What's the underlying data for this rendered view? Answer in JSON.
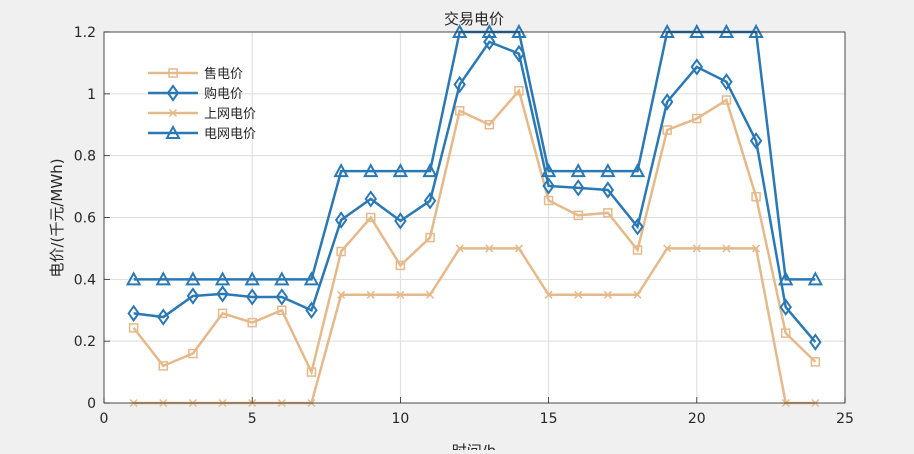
{
  "chart_data": {
    "type": "line",
    "title": "交易电价",
    "xlabel": "时间/h",
    "ylabel": "电价/(千元/MWh)",
    "xlim": [
      0,
      25
    ],
    "ylim": [
      0,
      1.2
    ],
    "xticks": [
      0,
      5,
      10,
      15,
      20,
      25
    ],
    "yticks": [
      0,
      0.2,
      0.4,
      0.6,
      0.8,
      1,
      1.2
    ],
    "grid": true,
    "legend_position": "top-left",
    "x": [
      1,
      2,
      3,
      4,
      5,
      6,
      7,
      8,
      9,
      10,
      11,
      12,
      13,
      14,
      15,
      16,
      17,
      18,
      19,
      20,
      21,
      22,
      23,
      24
    ],
    "series": [
      {
        "name": "售电价",
        "marker": "square",
        "color": "#e6b98a",
        "values": [
          0.243,
          0.12,
          0.16,
          0.29,
          0.26,
          0.3,
          0.1,
          0.49,
          0.6,
          0.445,
          0.535,
          0.945,
          0.9,
          1.01,
          0.655,
          0.607,
          0.615,
          0.495,
          0.883,
          0.92,
          0.98,
          0.667,
          0.226,
          0.133
        ]
      },
      {
        "name": "购电价",
        "marker": "diamond",
        "color": "#2a78b4",
        "values": [
          0.29,
          0.278,
          0.346,
          0.353,
          0.343,
          0.343,
          0.3,
          0.592,
          0.66,
          0.589,
          0.654,
          1.03,
          1.168,
          1.13,
          0.702,
          0.696,
          0.689,
          0.57,
          0.974,
          1.087,
          1.039,
          0.848,
          0.31,
          0.197
        ]
      },
      {
        "name": "上网电价",
        "marker": "x",
        "color": "#e6b98a",
        "values": [
          0,
          0,
          0,
          0,
          0,
          0,
          0,
          0.35,
          0.35,
          0.35,
          0.35,
          0.5,
          0.5,
          0.5,
          0.35,
          0.35,
          0.35,
          0.35,
          0.5,
          0.5,
          0.5,
          0.5,
          0,
          0
        ]
      },
      {
        "name": "电网电价",
        "marker": "triangle",
        "color": "#2a78b4",
        "values": [
          0.4,
          0.4,
          0.4,
          0.4,
          0.4,
          0.4,
          0.4,
          0.75,
          0.75,
          0.75,
          0.75,
          1.2,
          1.2,
          1.2,
          0.75,
          0.75,
          0.75,
          0.75,
          1.2,
          1.2,
          1.2,
          1.2,
          0.4,
          0.4
        ]
      }
    ]
  }
}
